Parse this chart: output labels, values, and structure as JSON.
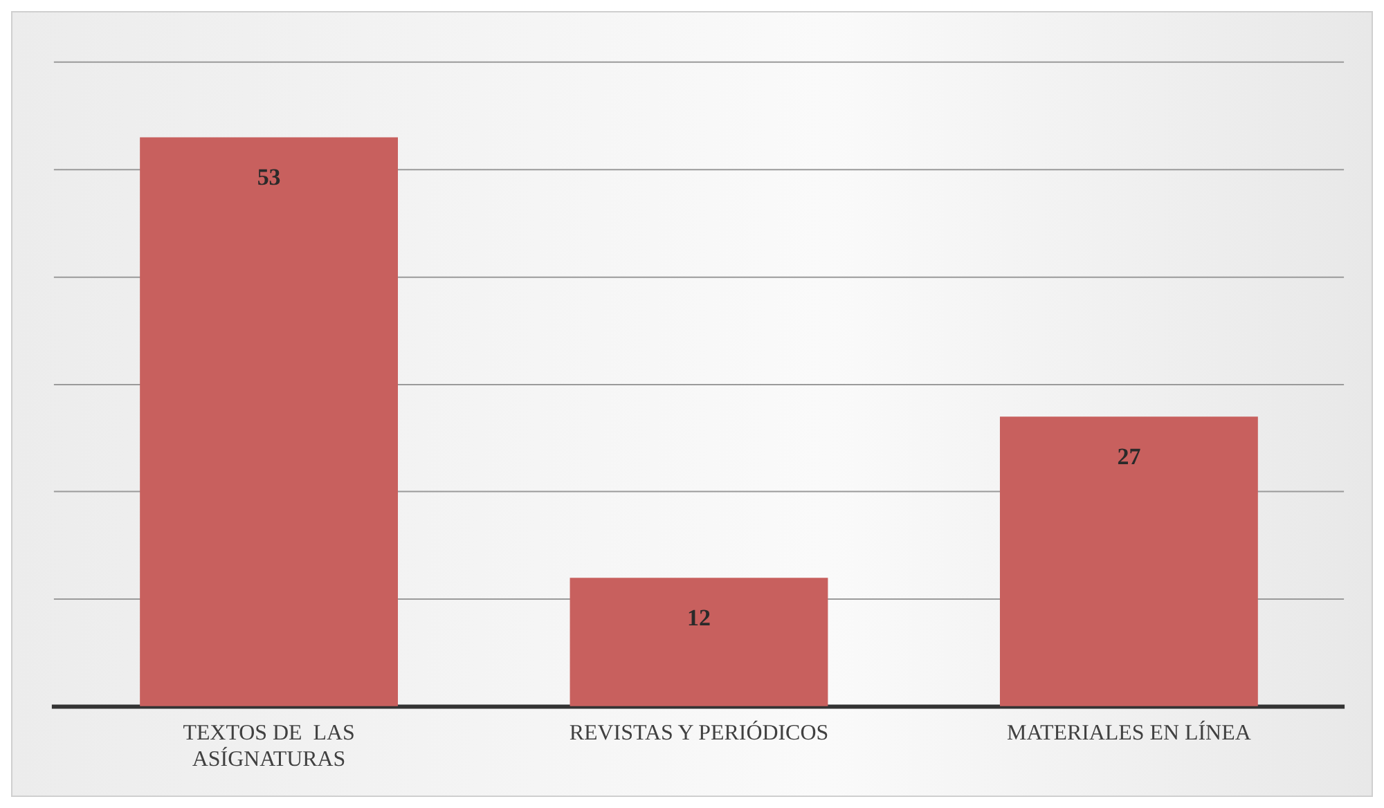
{
  "chart_data": {
    "type": "bar",
    "categories": [
      "TEXTOS DE  LAS ASÍGNATURAS",
      "REVISTAS Y PERIÓDICOS",
      "MATERIALES EN LÍNEA"
    ],
    "values": [
      53,
      12,
      27
    ],
    "color": "#c8605e",
    "ylim": [
      0,
      60
    ],
    "yticks": [
      {
        "value": 0,
        "label": null
      },
      {
        "value": 10,
        "label": null
      },
      {
        "value": 20,
        "label": null
      },
      {
        "value": 30,
        "label": null
      },
      {
        "value": 40,
        "label": null
      },
      {
        "value": 50,
        "label": null
      },
      {
        "value": 60,
        "label": null
      }
    ],
    "grid": "y",
    "data_labels": true,
    "tick_labels": "x",
    "legend": false
  }
}
